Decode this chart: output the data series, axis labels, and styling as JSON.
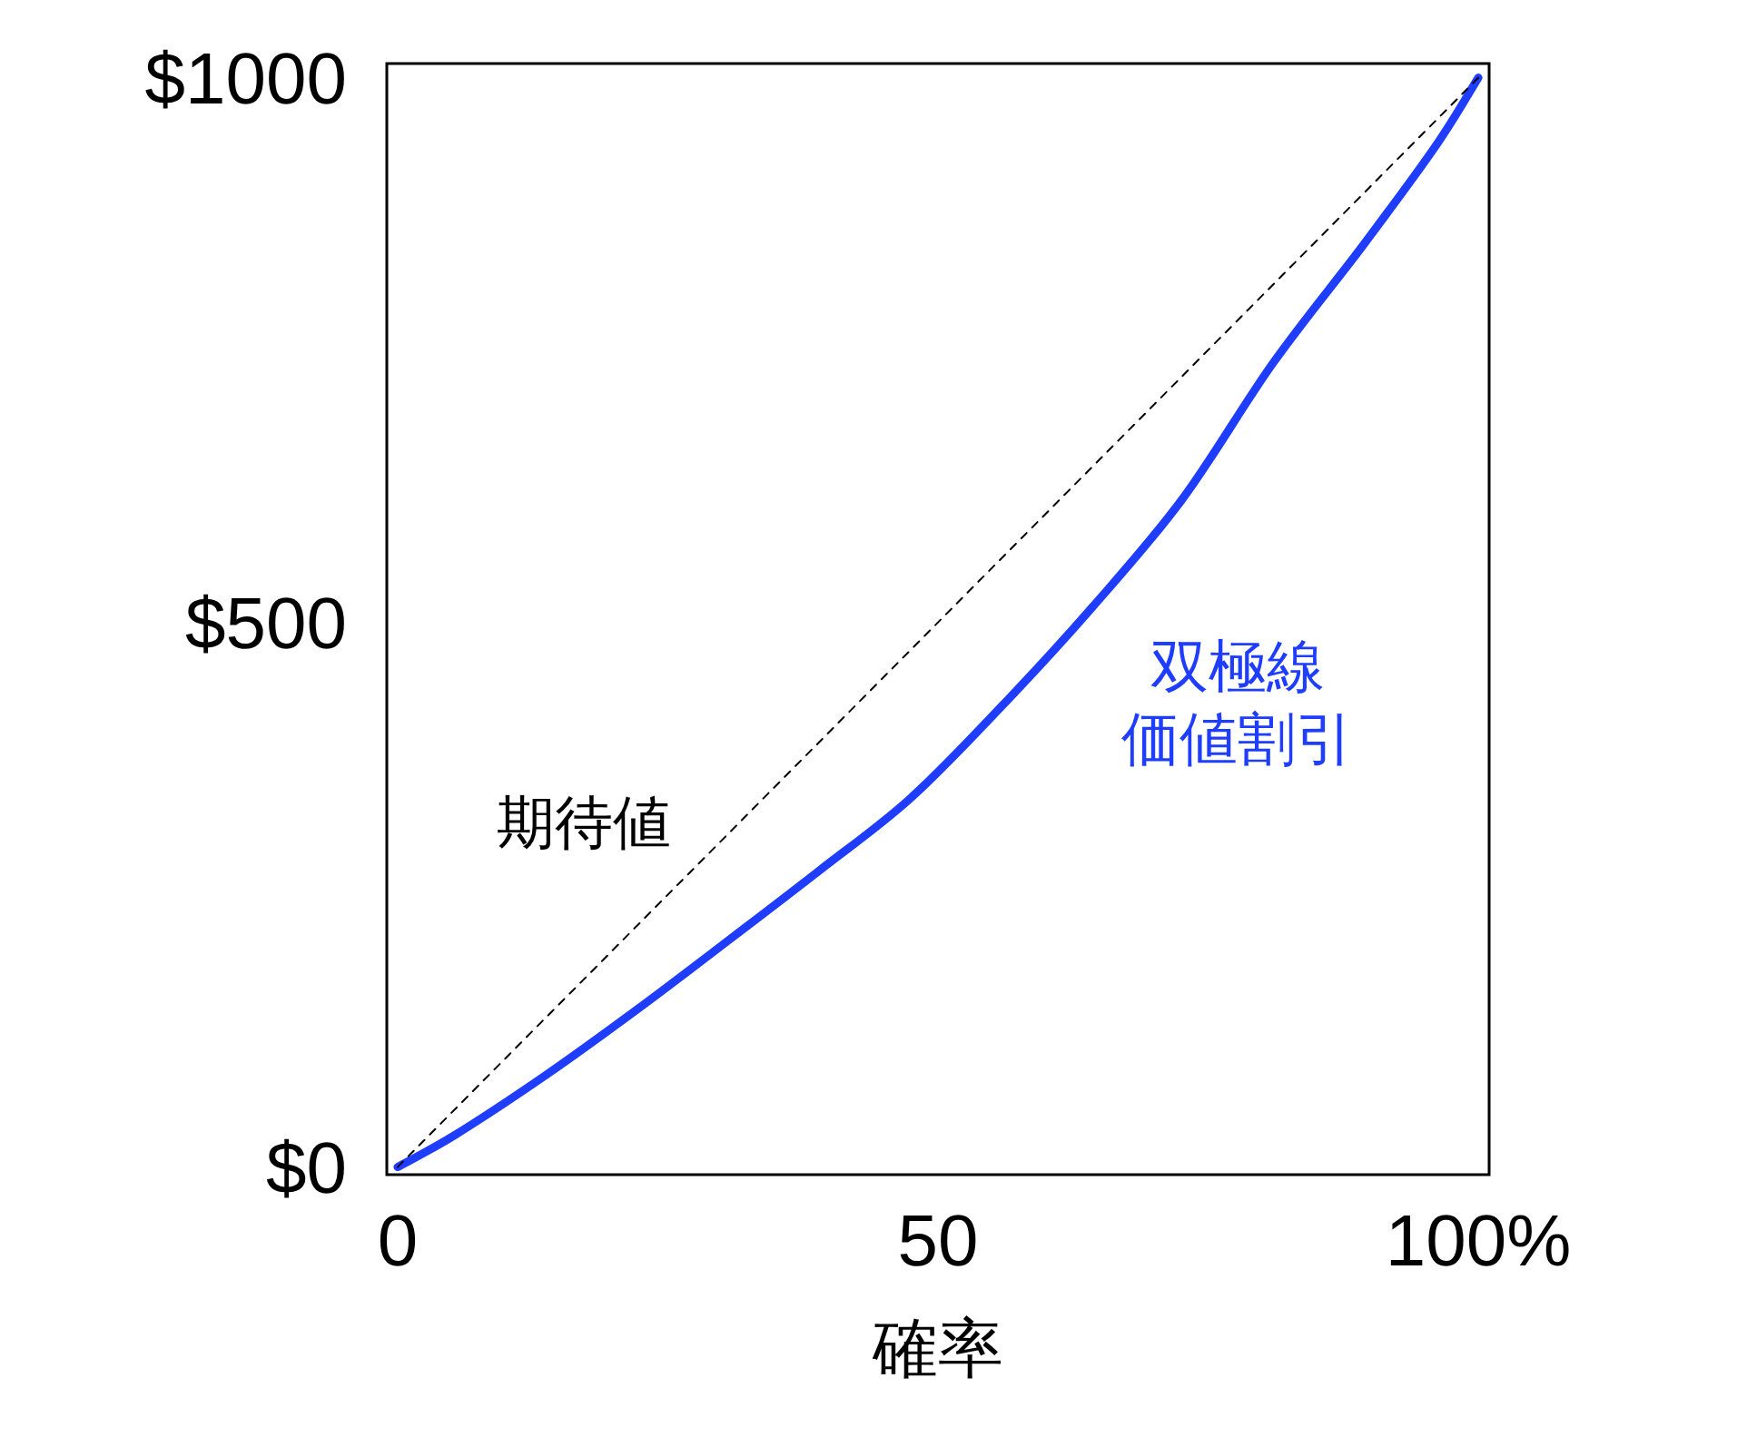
{
  "chart_data": {
    "type": "line",
    "xlabel": "確率",
    "xlim": [
      -1,
      101
    ],
    "ylim": [
      -7,
      1013
    ],
    "xticks": [
      0,
      50,
      {
        "value": 100,
        "label": "100%"
      }
    ],
    "yticks": [
      {
        "value": 0,
        "label": "$0"
      },
      {
        "value": 500,
        "label": "$500"
      },
      {
        "value": 1000,
        "label": "$1000"
      }
    ],
    "grid": false,
    "legend": false,
    "marker": "none",
    "series": [
      {
        "name": "期待値",
        "color": "#000000",
        "line_style": "dotted",
        "x": [
          0,
          100
        ],
        "values": [
          0,
          1000
        ]
      },
      {
        "name": "双極線価値割引",
        "color": "#1f3dff",
        "line_style": "solid",
        "x": [
          0,
          5.4,
          13.8,
          22.2,
          30.6,
          39,
          47.4,
          55.8,
          64.2,
          72.6,
          81,
          89.4,
          96.1,
          100
        ],
        "values": [
          0,
          30,
          85,
          145,
          208,
          272,
          338,
          422,
          513,
          613,
          738,
          847,
          938,
          1000
        ]
      }
    ]
  }
}
